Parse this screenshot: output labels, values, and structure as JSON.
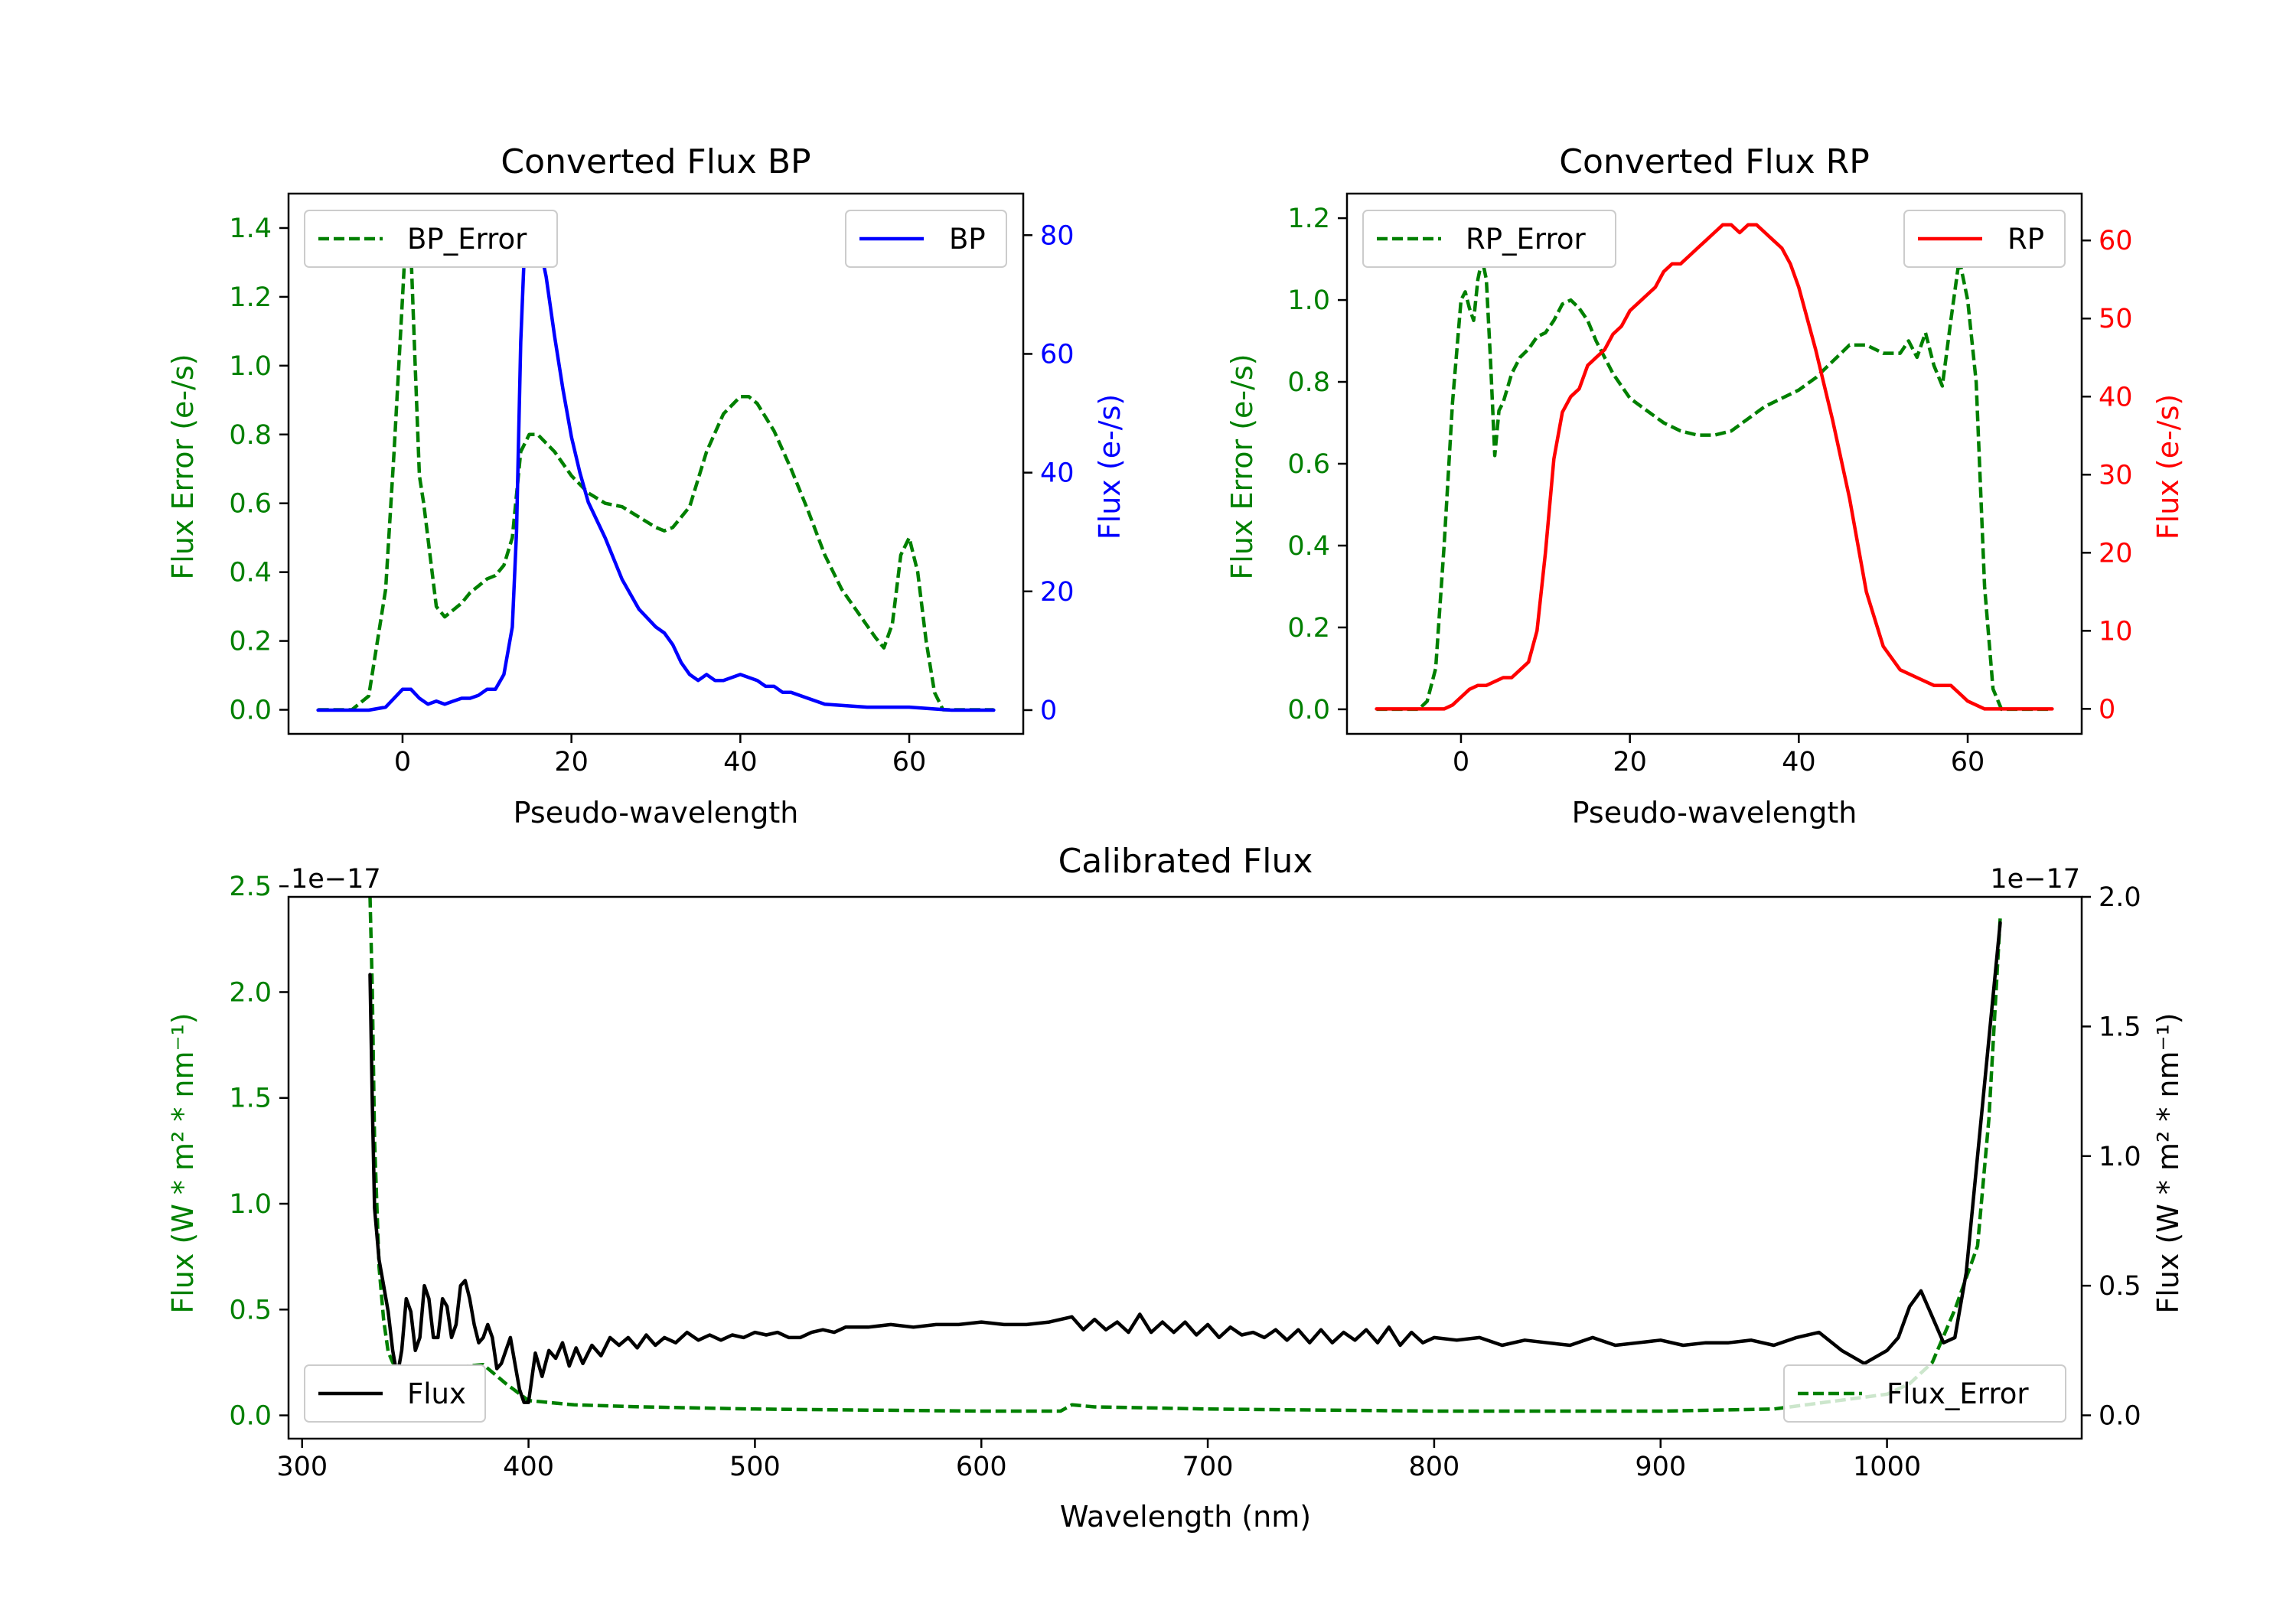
{
  "colors": {
    "error": "#008000",
    "bp": "#0000ff",
    "rp": "#ff0000",
    "flux": "#000000"
  },
  "chart_data": [
    {
      "type": "line",
      "title": "Converted Flux BP",
      "xlabel": "Pseudo-wavelength",
      "ylabel_left": "Flux Error (e-/s)",
      "ylabel_right": "Flux (e-/s)",
      "xlim": [
        -13.5,
        73.5
      ],
      "ylim_left": [
        -0.07,
        1.5
      ],
      "ylim_right": [
        -4.0,
        87.0
      ],
      "xticks": [
        0,
        20,
        40,
        60
      ],
      "yticks_left": [
        0.0,
        0.2,
        0.4,
        0.6,
        0.8,
        1.0,
        1.2,
        1.4
      ],
      "yticks_right": [
        0,
        20,
        40,
        60,
        80
      ],
      "legend_left": "BP_Error",
      "legend_right": "BP",
      "series": [
        {
          "name": "BP_Error",
          "axis": "left",
          "style": "dashed",
          "color": "#008000",
          "x": [
            -10,
            -6,
            -4,
            -2,
            -1,
            0,
            0.5,
            1,
            1.5,
            2,
            2.5,
            3,
            4,
            5,
            6,
            7,
            8,
            9,
            10,
            11,
            12,
            13,
            14,
            15,
            16,
            18,
            20,
            22,
            24,
            26,
            28,
            30,
            31,
            32,
            34,
            36,
            38,
            40,
            41,
            42,
            44,
            46,
            48,
            50,
            52,
            54,
            56,
            57,
            58,
            59,
            60,
            61,
            62,
            63,
            64,
            66,
            70
          ],
          "values": [
            0.0,
            0.0,
            0.04,
            0.35,
            0.75,
            1.2,
            1.43,
            1.33,
            1.0,
            0.68,
            0.6,
            0.5,
            0.3,
            0.27,
            0.29,
            0.31,
            0.34,
            0.36,
            0.38,
            0.39,
            0.42,
            0.5,
            0.75,
            0.8,
            0.8,
            0.75,
            0.68,
            0.63,
            0.6,
            0.59,
            0.56,
            0.53,
            0.52,
            0.53,
            0.59,
            0.75,
            0.86,
            0.91,
            0.91,
            0.89,
            0.81,
            0.7,
            0.58,
            0.45,
            0.35,
            0.28,
            0.21,
            0.18,
            0.25,
            0.45,
            0.5,
            0.4,
            0.2,
            0.05,
            0.0,
            0.0,
            0.0
          ]
        },
        {
          "name": "BP",
          "axis": "right",
          "style": "solid",
          "color": "#0000ff",
          "x": [
            -10,
            -4,
            -2,
            0,
            1,
            2,
            3,
            4,
            5,
            6,
            7,
            8,
            9,
            10,
            11,
            12,
            13,
            13.5,
            14,
            14.5,
            15,
            15.5,
            16,
            17,
            18,
            19,
            20,
            21,
            22,
            24,
            26,
            28,
            30,
            31,
            32,
            33,
            34,
            35,
            36,
            37,
            38,
            40,
            42,
            43,
            44,
            45,
            46,
            48,
            50,
            55,
            60,
            65,
            70
          ],
          "values": [
            0,
            0,
            0.5,
            3.5,
            3.5,
            2.0,
            1.0,
            1.5,
            1.0,
            1.5,
            2.0,
            2.0,
            2.5,
            3.5,
            3.5,
            6,
            14,
            30,
            62,
            80,
            84,
            82,
            80,
            73,
            63,
            54,
            46,
            40,
            35,
            29,
            22,
            17,
            14,
            13,
            11,
            8,
            6,
            5,
            6,
            5,
            5,
            6,
            5,
            4,
            4,
            3,
            3,
            2,
            1,
            0.5,
            0.5,
            0,
            0
          ]
        }
      ]
    },
    {
      "type": "line",
      "title": "Converted Flux RP",
      "xlabel": "Pseudo-wavelength",
      "ylabel_left": "Flux Error (e-/s)",
      "ylabel_right": "Flux (e-/s)",
      "xlim": [
        -13.5,
        73.5
      ],
      "ylim_left": [
        -0.06,
        1.26
      ],
      "ylim_right": [
        -3.2,
        66.0
      ],
      "xticks": [
        0,
        20,
        40,
        60
      ],
      "yticks_left": [
        0.0,
        0.2,
        0.4,
        0.6,
        0.8,
        1.0,
        1.2
      ],
      "yticks_right": [
        0,
        10,
        20,
        30,
        40,
        50,
        60
      ],
      "legend_left": "RP_Error",
      "legend_right": "RP",
      "series": [
        {
          "name": "RP_Error",
          "axis": "left",
          "style": "dashed",
          "color": "#008000",
          "x": [
            -10,
            -5,
            -4,
            -3,
            -2,
            -1,
            0,
            0.5,
            1,
            1.5,
            2,
            2.5,
            3,
            3.5,
            4,
            4.5,
            5,
            6,
            7,
            8,
            9,
            10,
            11,
            12,
            13,
            14,
            15,
            16,
            18,
            20,
            22,
            24,
            26,
            28,
            30,
            32,
            34,
            36,
            38,
            40,
            42,
            44,
            46,
            48,
            50,
            52,
            53,
            54,
            55,
            56,
            57,
            58,
            59,
            60,
            61,
            62,
            63,
            64,
            65,
            70
          ],
          "values": [
            0.0,
            0.0,
            0.02,
            0.1,
            0.4,
            0.75,
            1.0,
            1.02,
            0.98,
            0.95,
            1.05,
            1.1,
            1.05,
            0.85,
            0.62,
            0.73,
            0.75,
            0.82,
            0.86,
            0.88,
            0.91,
            0.92,
            0.95,
            0.99,
            1.0,
            0.98,
            0.95,
            0.9,
            0.82,
            0.76,
            0.73,
            0.7,
            0.68,
            0.67,
            0.67,
            0.68,
            0.71,
            0.74,
            0.76,
            0.78,
            0.81,
            0.85,
            0.89,
            0.89,
            0.87,
            0.87,
            0.9,
            0.86,
            0.92,
            0.84,
            0.79,
            0.95,
            1.1,
            1.0,
            0.8,
            0.3,
            0.05,
            0.0,
            0.0,
            0.0
          ]
        },
        {
          "name": "RP",
          "axis": "right",
          "style": "solid",
          "color": "#ff0000",
          "x": [
            -10,
            -2,
            -1,
            0,
            1,
            2,
            3,
            4,
            5,
            6,
            7,
            8,
            9,
            10,
            11,
            12,
            13,
            14,
            15,
            16,
            17,
            18,
            19,
            20,
            21,
            22,
            23,
            24,
            25,
            26,
            27,
            28,
            29,
            30,
            31,
            32,
            33,
            34,
            35,
            36,
            37,
            38,
            39,
            40,
            42,
            44,
            46,
            48,
            50,
            52,
            54,
            56,
            58,
            59,
            60,
            62,
            65,
            70
          ],
          "values": [
            0,
            0,
            0.5,
            1.5,
            2.5,
            3,
            3,
            3.5,
            4,
            4,
            5,
            6,
            10,
            20,
            32,
            38,
            40,
            41,
            44,
            45,
            46,
            48,
            49,
            51,
            52,
            53,
            54,
            56,
            57,
            57,
            58,
            59,
            60,
            61,
            62,
            62,
            61,
            62,
            62,
            61,
            60,
            59,
            57,
            54,
            46,
            37,
            27,
            15,
            8,
            5,
            4,
            3,
            3,
            2,
            1,
            0,
            0,
            0
          ]
        }
      ]
    },
    {
      "type": "line",
      "title": "Calibrated Flux",
      "xlabel": "Wavelength (nm)",
      "ylabel_left": "Flux (W * m² * nm⁻¹)",
      "ylabel_right": "Flux (W * m² * nm⁻¹)",
      "offset_left": "1e−17",
      "offset_right": "1e−17",
      "xlim": [
        294,
        1086
      ],
      "ylim_left": [
        -0.11,
        2.45
      ],
      "ylim_right": [
        -0.09,
        2.0
      ],
      "xticks": [
        300,
        400,
        500,
        600,
        700,
        800,
        900,
        1000
      ],
      "yticks_left": [
        0.0,
        0.5,
        1.0,
        1.5,
        2.0,
        2.5
      ],
      "yticks_right": [
        0.0,
        0.5,
        1.0,
        1.5,
        2.0
      ],
      "legend_left": "Flux",
      "legend_right": "Flux_Error",
      "series": [
        {
          "name": "Flux_Error",
          "axis": "left",
          "style": "dashed",
          "color": "#008000",
          "x": [
            330,
            331,
            332,
            334,
            336,
            338,
            340,
            342,
            345,
            350,
            360,
            370,
            380,
            390,
            400,
            420,
            450,
            500,
            550,
            600,
            635,
            640,
            650,
            700,
            800,
            900,
            950,
            1000,
            1010,
            1020,
            1030,
            1040,
            1045,
            1050
          ],
          "values": [
            2.45,
            2.0,
            1.3,
            0.7,
            0.45,
            0.3,
            0.25,
            0.22,
            0.21,
            0.21,
            0.22,
            0.23,
            0.24,
            0.15,
            0.07,
            0.05,
            0.04,
            0.03,
            0.025,
            0.02,
            0.02,
            0.05,
            0.04,
            0.03,
            0.02,
            0.02,
            0.03,
            0.1,
            0.15,
            0.25,
            0.5,
            0.8,
            1.4,
            2.35
          ]
        },
        {
          "name": "Flux",
          "axis": "right",
          "style": "solid",
          "color": "#000000",
          "x": [
            330,
            331,
            332,
            334,
            336,
            338,
            340,
            342,
            344,
            346,
            348,
            350,
            352,
            354,
            356,
            358,
            360,
            362,
            364,
            366,
            368,
            370,
            372,
            374,
            376,
            378,
            380,
            382,
            384,
            386,
            388,
            390,
            392,
            394,
            396,
            398,
            400,
            403,
            406,
            409,
            412,
            415,
            418,
            421,
            424,
            428,
            432,
            436,
            440,
            444,
            448,
            452,
            456,
            460,
            465,
            470,
            475,
            480,
            485,
            490,
            495,
            500,
            505,
            510,
            515,
            520,
            525,
            530,
            535,
            540,
            550,
            560,
            570,
            580,
            590,
            600,
            610,
            620,
            630,
            635,
            640,
            645,
            650,
            655,
            660,
            665,
            670,
            675,
            680,
            685,
            690,
            695,
            700,
            705,
            710,
            715,
            720,
            725,
            730,
            735,
            740,
            745,
            750,
            755,
            760,
            765,
            770,
            775,
            780,
            785,
            790,
            795,
            800,
            810,
            820,
            830,
            840,
            850,
            860,
            870,
            880,
            890,
            900,
            910,
            920,
            930,
            940,
            950,
            960,
            970,
            980,
            990,
            1000,
            1005,
            1010,
            1015,
            1020,
            1025,
            1030,
            1035,
            1040,
            1045,
            1050
          ],
          "values": [
            1.7,
            1.2,
            0.8,
            0.6,
            0.5,
            0.4,
            0.25,
            0.15,
            0.25,
            0.45,
            0.4,
            0.25,
            0.3,
            0.5,
            0.45,
            0.3,
            0.3,
            0.45,
            0.42,
            0.3,
            0.35,
            0.5,
            0.52,
            0.45,
            0.35,
            0.28,
            0.3,
            0.35,
            0.3,
            0.18,
            0.2,
            0.25,
            0.3,
            0.2,
            0.1,
            0.05,
            0.05,
            0.24,
            0.15,
            0.25,
            0.22,
            0.28,
            0.19,
            0.26,
            0.2,
            0.27,
            0.23,
            0.3,
            0.27,
            0.3,
            0.26,
            0.31,
            0.27,
            0.3,
            0.28,
            0.32,
            0.29,
            0.31,
            0.29,
            0.31,
            0.3,
            0.32,
            0.31,
            0.32,
            0.3,
            0.3,
            0.32,
            0.33,
            0.32,
            0.34,
            0.34,
            0.35,
            0.34,
            0.35,
            0.35,
            0.36,
            0.35,
            0.35,
            0.36,
            0.37,
            0.38,
            0.33,
            0.37,
            0.33,
            0.36,
            0.32,
            0.39,
            0.32,
            0.36,
            0.32,
            0.36,
            0.31,
            0.35,
            0.3,
            0.34,
            0.31,
            0.32,
            0.3,
            0.33,
            0.29,
            0.33,
            0.28,
            0.33,
            0.28,
            0.32,
            0.29,
            0.33,
            0.28,
            0.34,
            0.27,
            0.32,
            0.28,
            0.3,
            0.29,
            0.3,
            0.27,
            0.29,
            0.28,
            0.27,
            0.3,
            0.27,
            0.28,
            0.29,
            0.27,
            0.28,
            0.28,
            0.29,
            0.27,
            0.3,
            0.32,
            0.25,
            0.2,
            0.25,
            0.3,
            0.42,
            0.48,
            0.38,
            0.28,
            0.3,
            0.55,
            1.0,
            1.45,
            1.9
          ]
        }
      ]
    }
  ]
}
